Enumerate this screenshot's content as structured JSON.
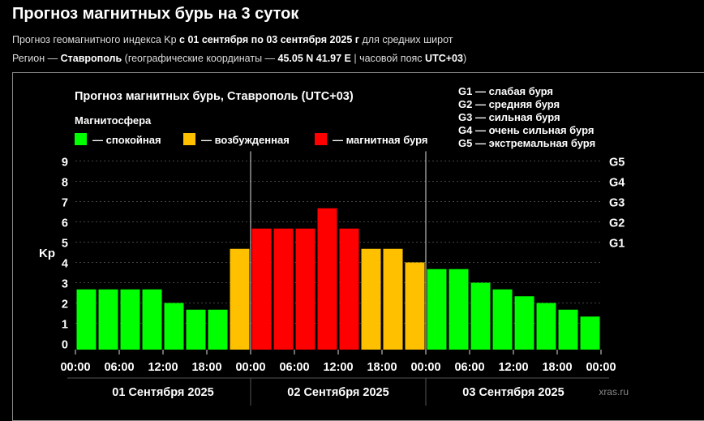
{
  "header": {
    "title": "Прогноз магнитных бурь на 3 суток",
    "sub1_prefix": "Прогноз геомагнитного индекса Kp",
    "sub1_bold": "с 01 сентября по 03 сентября 2025 г",
    "sub1_suffix": "для средних широт",
    "sub2_prefix": "Регион —",
    "sub2_region": "Ставрополь",
    "sub2_mid": "(географические координаты —",
    "sub2_coords": "45.05 N 41.97 E",
    "sub2_tz_prefix": "| часовой пояс",
    "sub2_tz": "UTC+03",
    "sub2_end": ")"
  },
  "chart_data": {
    "type": "bar",
    "title": "Прогноз магнитных бурь, Ставрополь (UTC+03)",
    "ylabel": "Kp",
    "ylim": [
      0,
      9
    ],
    "yticks": [
      "0",
      "1",
      "2",
      "3",
      "4",
      "5",
      "6",
      "7",
      "8",
      "9"
    ],
    "right_ticks": [
      {
        "value": 5,
        "label": "G1"
      },
      {
        "value": 6,
        "label": "G2"
      },
      {
        "value": 7,
        "label": "G3"
      },
      {
        "value": 8,
        "label": "G4"
      },
      {
        "value": 9,
        "label": "G5"
      }
    ],
    "legend_title": "Магнитосфера",
    "legend": [
      {
        "label": "— спокойная",
        "color": "#00ff00"
      },
      {
        "label": "— возбужденная",
        "color": "#ffc000"
      },
      {
        "label": "— магнитная буря",
        "color": "#ff0000"
      }
    ],
    "storm_legend": [
      "G1 — слабая буря",
      "G2 — средняя буря",
      "G3 — сильная буря",
      "G4 — очень сильная буря",
      "G5 — экстремальная буря"
    ],
    "xtick_labels": [
      "00:00",
      "06:00",
      "12:00",
      "18:00",
      "00:00",
      "06:00",
      "12:00",
      "18:00",
      "00:00",
      "06:00",
      "12:00",
      "18:00",
      "00:00"
    ],
    "days": [
      "01 Сентября 2025",
      "02 Сентября 2025",
      "03 Сентября 2025"
    ],
    "values": [
      2.67,
      2.67,
      2.67,
      2.67,
      2.0,
      1.67,
      1.67,
      4.67,
      5.67,
      5.67,
      5.67,
      6.67,
      5.67,
      4.67,
      4.67,
      4.0,
      3.67,
      3.67,
      3.0,
      2.67,
      2.33,
      2.0,
      1.67,
      1.33
    ],
    "colors": {
      "quiet": "#00ff00",
      "active": "#ffc000",
      "storm": "#ff0000"
    }
  },
  "watermark": "xras.ru"
}
